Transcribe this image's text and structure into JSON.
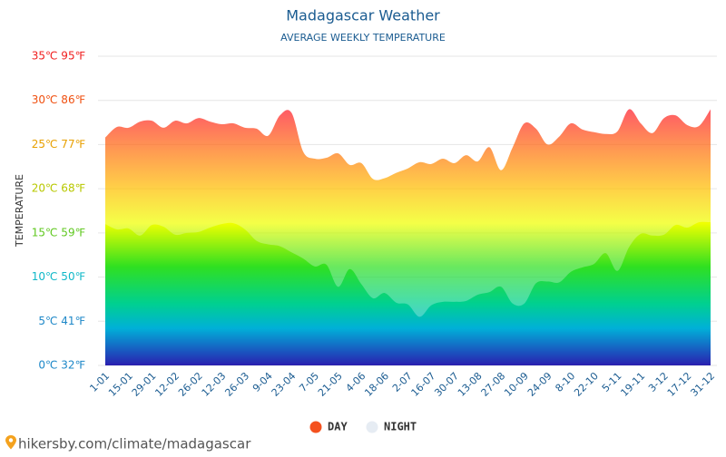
{
  "chart_data": {
    "type": "area",
    "title": "Madagascar Weather",
    "subtitle": "AVERAGE WEEKLY TEMPERATURE",
    "y_label": "TEMPERATURE",
    "source": "hikersby.com/climate/madagascar",
    "categories": [
      "1-01",
      null,
      "15-01",
      null,
      "29-01",
      null,
      "12-02",
      null,
      "26-02",
      null,
      "12-03",
      null,
      "26-03",
      null,
      "9-04",
      null,
      "23-04",
      null,
      "7-05",
      null,
      "21-05",
      null,
      "4-06",
      null,
      "18-06",
      null,
      "2-07",
      null,
      "16-07",
      null,
      "30-07",
      null,
      "13-08",
      null,
      "27-08",
      null,
      "10-09",
      null,
      "24-09",
      null,
      "8-10",
      null,
      "22-10",
      null,
      "5-11",
      null,
      "19-11",
      null,
      "3-12",
      null,
      "17-12",
      null,
      "31-12"
    ],
    "series": [
      {
        "name": "DAY",
        "color": "#f4511e",
        "values": [
          25.8,
          27.0,
          26.9,
          27.6,
          27.7,
          26.9,
          27.7,
          27.4,
          28.0,
          27.6,
          27.3,
          27.4,
          26.9,
          26.8,
          26.0,
          28.3,
          28.6,
          24.2,
          23.4,
          23.5,
          24.0,
          22.7,
          22.9,
          21.1,
          21.2,
          21.8,
          22.3,
          23.0,
          22.8,
          23.4,
          22.9,
          23.8,
          23.1,
          24.7,
          22.1,
          24.7,
          27.4,
          26.8,
          25.0,
          25.9,
          27.4,
          26.7,
          26.4,
          26.2,
          26.5,
          29.0,
          27.4,
          26.3,
          28.0,
          28.3,
          27.2,
          27.1,
          29.0
        ]
      },
      {
        "name": "NIGHT",
        "color": "#e6ecf3",
        "values": [
          16.0,
          15.4,
          15.5,
          14.7,
          15.9,
          15.7,
          14.8,
          15.0,
          15.1,
          15.6,
          16.0,
          16.1,
          15.4,
          14.1,
          13.7,
          13.5,
          12.8,
          12.1,
          11.2,
          11.4,
          8.9,
          10.9,
          9.2,
          7.6,
          8.2,
          7.1,
          6.9,
          5.5,
          6.8,
          7.2,
          7.2,
          7.3,
          8.0,
          8.3,
          8.9,
          7.0,
          7.0,
          9.3,
          9.5,
          9.4,
          10.6,
          11.1,
          11.5,
          12.7,
          10.7,
          13.4,
          14.9,
          14.7,
          14.8,
          15.9,
          15.6,
          16.2,
          16.2
        ]
      }
    ],
    "ylim": [
      0,
      35
    ],
    "yticks": [
      {
        "value": 0,
        "label": "0℃ 32℉"
      },
      {
        "value": 5,
        "label": "5℃ 41℉"
      },
      {
        "value": 10,
        "label": "10℃ 50℉"
      },
      {
        "value": 15,
        "label": "15℃ 59℉"
      },
      {
        "value": 20,
        "label": "20℃ 68℉"
      },
      {
        "value": 25,
        "label": "25℃ 77℉"
      },
      {
        "value": 30,
        "label": "30℃ 86℉"
      },
      {
        "value": 35,
        "label": "35℃ 95℉"
      }
    ],
    "grid": true,
    "legend": "bottom"
  }
}
